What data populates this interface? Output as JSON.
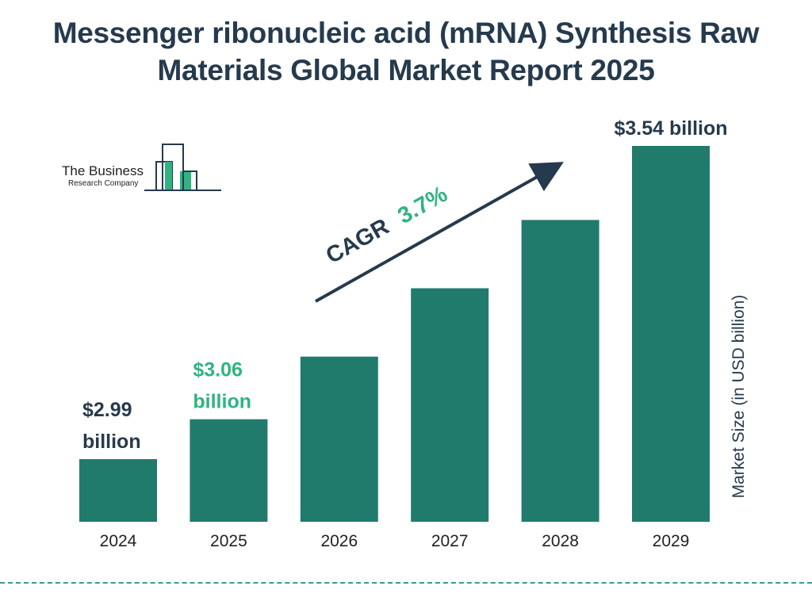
{
  "title_lines": [
    "Messenger ribonucleic acid (mRNA) Synthesis Raw",
    "Materials Global Market Report 2025"
  ],
  "logo": {
    "name": "The Business",
    "sub": "Research Company"
  },
  "colors": {
    "bar": "#217b6c",
    "title": "#263a4d",
    "accent": "#2fb47f",
    "dark": "#263a4d"
  },
  "chart_data": {
    "type": "bar",
    "categories": [
      "2024",
      "2025",
      "2026",
      "2027",
      "2028",
      "2029"
    ],
    "values": [
      2.99,
      3.06,
      3.17,
      3.29,
      3.41,
      3.54
    ],
    "ylabel": "Market Size (in USD billion)",
    "data_labels": [
      {
        "index": 0,
        "lines": [
          "$2.99",
          "billion"
        ],
        "color": "#263a4d"
      },
      {
        "index": 1,
        "lines": [
          "$3.06",
          "billion"
        ],
        "color": "#2fb47f"
      },
      {
        "index": 5,
        "lines": [
          "$3.54 billion"
        ],
        "color": "#263a4d"
      }
    ],
    "cagr": {
      "label": "CAGR",
      "value": "3.7%"
    }
  }
}
